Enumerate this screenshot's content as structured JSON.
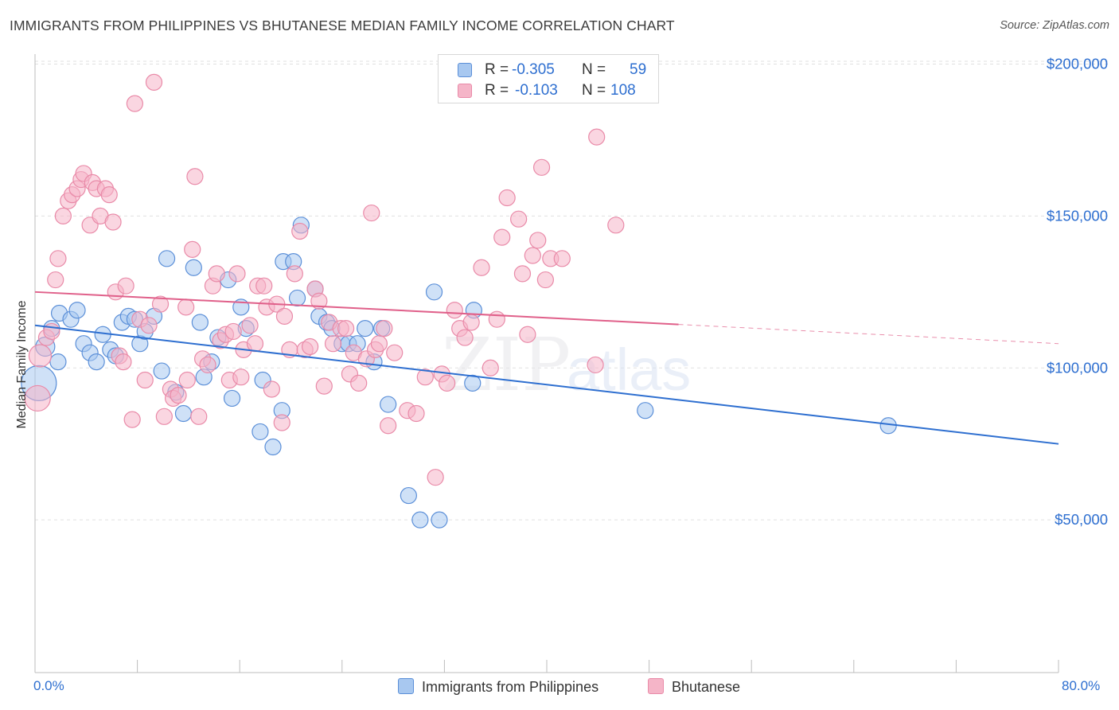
{
  "header": {
    "title": "IMMIGRANTS FROM PHILIPPINES VS BHUTANESE MEDIAN FAMILY INCOME CORRELATION CHART",
    "source": "Source: ZipAtlas.com"
  },
  "watermark": {
    "zip": "ZIP",
    "atlas": "atlas"
  },
  "stats_legend": {
    "rows": [
      {
        "r_label": "R =",
        "r_value": "-0.305",
        "n_label": "N =",
        "n_value": "59",
        "color": "#a8c8f0"
      },
      {
        "r_label": "R =",
        "r_value": "-0.103",
        "n_label": "N =",
        "n_value": "108",
        "color": "#f5b5c8"
      }
    ]
  },
  "bottom_legend": {
    "series_a": "Immigrants from Philippines",
    "series_b": "Bhutanese"
  },
  "colors": {
    "blue_fill": "#a8c8f0",
    "blue_stroke": "#5b8fd8",
    "blue_line": "#2e6fd0",
    "pink_fill": "#f5b5c8",
    "pink_stroke": "#e98aa8",
    "pink_line": "#e0608a",
    "axis_text": "#2e6fd0",
    "grid": "#e0e0e0"
  },
  "chart_data": {
    "type": "scatter",
    "title": "IMMIGRANTS FROM PHILIPPINES VS BHUTANESE MEDIAN FAMILY INCOME CORRELATION CHART",
    "xlabel": "",
    "ylabel": "Median Family Income",
    "xlim": [
      0,
      80
    ],
    "ylim": [
      0,
      210000
    ],
    "x_tick_labels": {
      "min": "0.0%",
      "max": "80.0%"
    },
    "y_ticks": [
      {
        "value": 50000,
        "label": "$50,000"
      },
      {
        "value": 100000,
        "label": "$100,000"
      },
      {
        "value": 150000,
        "label": "$150,000"
      },
      {
        "value": 200000,
        "label": "$200,000"
      }
    ],
    "grid": true,
    "legend_position": "bottom",
    "series": [
      {
        "name": "Immigrants from Philippines",
        "trend": {
          "x_start": 0,
          "y_start": 114000,
          "x_end": 80,
          "y_end": 75000,
          "dashed_from": null
        },
        "points": [
          [
            0.3,
            95000,
            22
          ],
          [
            0.8,
            107000,
            12
          ],
          [
            1.3,
            113000,
            10
          ],
          [
            1.8,
            102000,
            10
          ],
          [
            1.9,
            118000,
            10
          ],
          [
            2.8,
            116000,
            10
          ],
          [
            3.3,
            119000,
            10
          ],
          [
            3.8,
            108000,
            10
          ],
          [
            4.3,
            105000,
            10
          ],
          [
            4.8,
            102000,
            10
          ],
          [
            5.3,
            111000,
            10
          ],
          [
            5.9,
            106000,
            10
          ],
          [
            6.3,
            104000,
            10
          ],
          [
            6.8,
            115000,
            10
          ],
          [
            7.3,
            117000,
            10
          ],
          [
            7.8,
            116000,
            10
          ],
          [
            8.2,
            108000,
            10
          ],
          [
            8.6,
            112000,
            10
          ],
          [
            9.3,
            117000,
            10
          ],
          [
            9.9,
            99000,
            10
          ],
          [
            10.3,
            136000,
            10
          ],
          [
            11.0,
            92000,
            10
          ],
          [
            11.6,
            85000,
            10
          ],
          [
            12.4,
            133000,
            10
          ],
          [
            12.9,
            115000,
            10
          ],
          [
            13.2,
            97000,
            10
          ],
          [
            13.8,
            102000,
            10
          ],
          [
            14.3,
            110000,
            10
          ],
          [
            15.1,
            129000,
            10
          ],
          [
            15.4,
            90000,
            10
          ],
          [
            16.1,
            120000,
            10
          ],
          [
            16.5,
            113000,
            10
          ],
          [
            17.6,
            79000,
            10
          ],
          [
            17.8,
            96000,
            10
          ],
          [
            18.6,
            74000,
            10
          ],
          [
            19.3,
            86000,
            10
          ],
          [
            19.4,
            135000,
            10
          ],
          [
            20.2,
            135000,
            10
          ],
          [
            20.5,
            123000,
            10
          ],
          [
            20.8,
            147000,
            10
          ],
          [
            21.9,
            126000,
            10
          ],
          [
            22.2,
            117000,
            10
          ],
          [
            22.8,
            115000,
            10
          ],
          [
            23.2,
            113000,
            10
          ],
          [
            24.0,
            108000,
            10
          ],
          [
            24.5,
            108000,
            10
          ],
          [
            25.2,
            108000,
            10
          ],
          [
            25.8,
            113000,
            10
          ],
          [
            26.5,
            102000,
            10
          ],
          [
            27.1,
            113000,
            10
          ],
          [
            27.6,
            88000,
            10
          ],
          [
            29.2,
            58000,
            10
          ],
          [
            30.1,
            50000,
            10
          ],
          [
            31.2,
            125000,
            10
          ],
          [
            31.6,
            50000,
            10
          ],
          [
            34.2,
            95000,
            10
          ],
          [
            34.3,
            119000,
            10
          ],
          [
            47.7,
            86000,
            10
          ],
          [
            66.7,
            81000,
            10
          ]
        ]
      },
      {
        "name": "Bhutanese",
        "trend": {
          "x_start": 0,
          "y_start": 125000,
          "x_end": 80,
          "y_end": 108000,
          "dashed_from": 50.3
        },
        "points": [
          [
            0.2,
            90000,
            16
          ],
          [
            0.4,
            104000,
            14
          ],
          [
            0.9,
            110000,
            10
          ],
          [
            1.3,
            112000,
            10
          ],
          [
            1.6,
            129000,
            10
          ],
          [
            1.8,
            136000,
            10
          ],
          [
            2.2,
            150000,
            10
          ],
          [
            2.6,
            155000,
            10
          ],
          [
            2.9,
            157000,
            10
          ],
          [
            3.3,
            159000,
            10
          ],
          [
            3.6,
            162000,
            10
          ],
          [
            3.8,
            164000,
            10
          ],
          [
            4.3,
            147000,
            10
          ],
          [
            4.5,
            161000,
            10
          ],
          [
            4.8,
            159000,
            10
          ],
          [
            5.1,
            150000,
            10
          ],
          [
            5.5,
            159000,
            10
          ],
          [
            5.8,
            157000,
            10
          ],
          [
            6.1,
            148000,
            10
          ],
          [
            6.3,
            125000,
            10
          ],
          [
            6.6,
            104000,
            10
          ],
          [
            6.9,
            102000,
            10
          ],
          [
            7.1,
            127000,
            10
          ],
          [
            7.6,
            83000,
            10
          ],
          [
            7.8,
            187000,
            10
          ],
          [
            8.2,
            116000,
            10
          ],
          [
            8.6,
            96000,
            10
          ],
          [
            8.9,
            114000,
            10
          ],
          [
            9.3,
            194000,
            10
          ],
          [
            9.8,
            121000,
            10
          ],
          [
            10.1,
            84000,
            10
          ],
          [
            10.6,
            93000,
            10
          ],
          [
            10.8,
            90000,
            10
          ],
          [
            11.2,
            91000,
            10
          ],
          [
            11.8,
            120000,
            10
          ],
          [
            11.9,
            96000,
            10
          ],
          [
            12.3,
            139000,
            10
          ],
          [
            12.5,
            163000,
            10
          ],
          [
            12.8,
            84000,
            10
          ],
          [
            13.1,
            103000,
            10
          ],
          [
            13.5,
            101000,
            10
          ],
          [
            13.9,
            127000,
            10
          ],
          [
            14.2,
            131000,
            10
          ],
          [
            14.5,
            109000,
            10
          ],
          [
            14.9,
            111000,
            10
          ],
          [
            15.2,
            96000,
            10
          ],
          [
            15.5,
            112000,
            10
          ],
          [
            15.8,
            131000,
            10
          ],
          [
            16.1,
            97000,
            10
          ],
          [
            16.3,
            106000,
            10
          ],
          [
            16.8,
            114000,
            10
          ],
          [
            17.2,
            108000,
            10
          ],
          [
            17.4,
            127000,
            10
          ],
          [
            17.9,
            127000,
            10
          ],
          [
            18.1,
            120000,
            10
          ],
          [
            18.5,
            93000,
            10
          ],
          [
            18.9,
            121000,
            10
          ],
          [
            19.3,
            82000,
            10
          ],
          [
            19.5,
            117000,
            10
          ],
          [
            19.9,
            106000,
            10
          ],
          [
            20.3,
            131000,
            10
          ],
          [
            20.7,
            145000,
            10
          ],
          [
            21.1,
            106000,
            10
          ],
          [
            21.5,
            107000,
            10
          ],
          [
            21.9,
            126000,
            10
          ],
          [
            22.2,
            122000,
            10
          ],
          [
            22.6,
            94000,
            10
          ],
          [
            23.0,
            115000,
            10
          ],
          [
            23.3,
            108000,
            10
          ],
          [
            23.9,
            113000,
            10
          ],
          [
            24.3,
            113000,
            10
          ],
          [
            24.6,
            98000,
            10
          ],
          [
            24.9,
            105000,
            10
          ],
          [
            25.3,
            95000,
            10
          ],
          [
            25.9,
            103000,
            10
          ],
          [
            26.3,
            151000,
            10
          ],
          [
            26.6,
            106000,
            10
          ],
          [
            26.9,
            108000,
            10
          ],
          [
            27.3,
            113000,
            10
          ],
          [
            27.6,
            81000,
            10
          ],
          [
            28.1,
            105000,
            10
          ],
          [
            29.1,
            86000,
            10
          ],
          [
            29.8,
            85000,
            10
          ],
          [
            30.5,
            97000,
            10
          ],
          [
            31.3,
            64000,
            10
          ],
          [
            31.8,
            98000,
            10
          ],
          [
            32.2,
            95000,
            10
          ],
          [
            32.8,
            119000,
            10
          ],
          [
            33.2,
            113000,
            10
          ],
          [
            33.6,
            110000,
            10
          ],
          [
            34.1,
            115000,
            10
          ],
          [
            34.9,
            133000,
            10
          ],
          [
            35.6,
            100000,
            10
          ],
          [
            36.1,
            116000,
            10
          ],
          [
            36.5,
            143000,
            10
          ],
          [
            36.9,
            156000,
            10
          ],
          [
            37.8,
            149000,
            10
          ],
          [
            38.1,
            131000,
            10
          ],
          [
            38.5,
            111000,
            10
          ],
          [
            38.9,
            137000,
            10
          ],
          [
            39.3,
            142000,
            10
          ],
          [
            39.6,
            166000,
            10
          ],
          [
            39.9,
            129000,
            10
          ],
          [
            40.3,
            136000,
            10
          ],
          [
            41.2,
            136000,
            10
          ],
          [
            43.8,
            101000,
            10
          ],
          [
            43.9,
            176000,
            10
          ],
          [
            45.4,
            147000,
            10
          ]
        ]
      }
    ]
  }
}
